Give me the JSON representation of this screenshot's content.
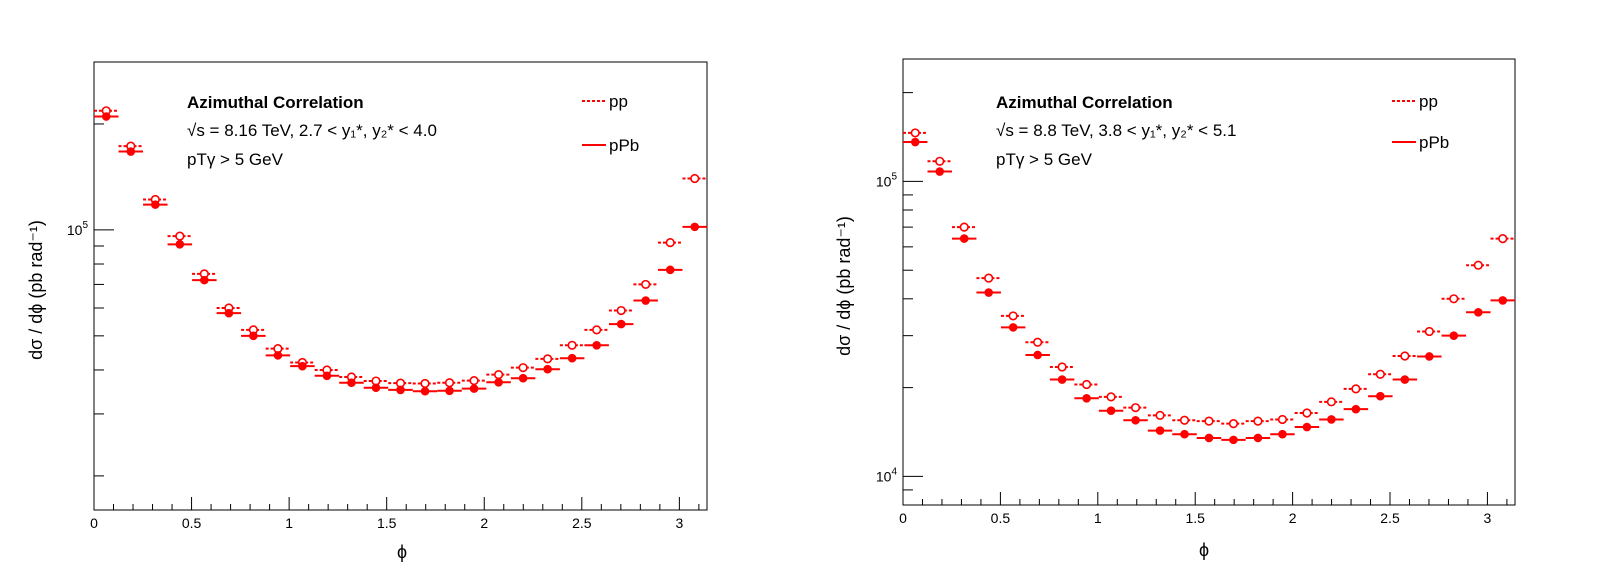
{
  "chart_data": [
    {
      "type": "scatter",
      "title": "",
      "xlabel": "ϕ",
      "ylabel": "dσ / dϕ (pb rad⁻¹)",
      "xlim": [
        0,
        3.14159
      ],
      "ylim": [
        16000,
        300000
      ],
      "yscale": "log",
      "xticks": [
        0,
        0.5,
        1,
        1.5,
        2,
        2.5,
        3
      ],
      "xtick_labels": [
        "0",
        "0.5",
        "1",
        "1.5",
        "2",
        "2.5",
        "3"
      ],
      "yticks_major": [
        {
          "value": 100000,
          "base": "10",
          "exp": "5"
        }
      ],
      "annotation": {
        "title": "Azimuthal Correlation",
        "sqrt_s": "√s = 8.16 TeV, 2.7 < y₁*, y₂* < 4.0",
        "pt_cut": "pTγ > 5 GeV"
      },
      "legend": [
        {
          "name": "pp",
          "style": "dotted"
        },
        {
          "name": "pPb",
          "style": "solid"
        }
      ],
      "legend_position": "top-right",
      "bin_width": 0.12566,
      "x": [
        0.0628,
        0.1885,
        0.3142,
        0.4398,
        0.5655,
        0.6912,
        0.8168,
        0.9425,
        1.0681,
        1.1938,
        1.3195,
        1.4451,
        1.5708,
        1.6965,
        1.8221,
        1.9478,
        2.0735,
        2.1991,
        2.3248,
        2.4504,
        2.5761,
        2.7018,
        2.8274,
        2.9531,
        3.0788
      ],
      "series": [
        {
          "name": "pp",
          "marker": "open-circle",
          "values": [
            218000,
            173000,
            122000,
            96000,
            75000,
            60000,
            52000,
            46000,
            42000,
            40000,
            38200,
            37200,
            36700,
            36600,
            36800,
            37300,
            38800,
            40600,
            43000,
            47000,
            52000,
            59000,
            70000,
            92000,
            140000
          ]
        },
        {
          "name": "pPb",
          "marker": "filled-circle",
          "values": [
            210000,
            167000,
            118000,
            91000,
            72000,
            58000,
            50000,
            44000,
            41000,
            38500,
            36800,
            35600,
            35100,
            34800,
            34900,
            35400,
            36900,
            37900,
            40200,
            43200,
            47000,
            54000,
            63000,
            77000,
            102000
          ]
        }
      ],
      "color": "#ff0000"
    },
    {
      "type": "scatter",
      "title": "",
      "xlabel": "ϕ",
      "ylabel": "dσ / dϕ (pb rad⁻¹)",
      "xlim": [
        0,
        3.14159
      ],
      "ylim": [
        8000,
        260000
      ],
      "yscale": "log",
      "xticks": [
        0,
        0.5,
        1,
        1.5,
        2,
        2.5,
        3
      ],
      "xtick_labels": [
        "0",
        "0.5",
        "1",
        "1.5",
        "2",
        "2.5",
        "3"
      ],
      "yticks_major": [
        {
          "value": 10000,
          "base": "10",
          "exp": "4"
        },
        {
          "value": 100000,
          "base": "10",
          "exp": "5"
        }
      ],
      "annotation": {
        "title": "Azimuthal Correlation",
        "sqrt_s": "√s = 8.8 TeV, 3.8 < y₁*, y₂* < 5.1",
        "pt_cut": "pTγ > 5 GeV"
      },
      "legend": [
        {
          "name": "pp",
          "style": "dotted"
        },
        {
          "name": "pPb",
          "style": "solid"
        }
      ],
      "legend_position": "top-right",
      "bin_width": 0.12566,
      "x": [
        0.0628,
        0.1885,
        0.3142,
        0.4398,
        0.5655,
        0.6912,
        0.8168,
        0.9425,
        1.0681,
        1.1938,
        1.3195,
        1.4451,
        1.5708,
        1.6965,
        1.8221,
        1.9478,
        2.0735,
        2.1991,
        2.3248,
        2.4504,
        2.5761,
        2.7018,
        2.8274,
        2.9531,
        3.0788
      ],
      "series": [
        {
          "name": "pp",
          "marker": "open-circle",
          "values": [
            146000,
            117000,
            70000,
            47000,
            35000,
            28500,
            23500,
            20500,
            18600,
            17100,
            16100,
            15500,
            15400,
            15100,
            15400,
            15600,
            16400,
            17900,
            19800,
            22200,
            25600,
            31000,
            40000,
            52000,
            64000
          ]
        },
        {
          "name": "pPb",
          "marker": "filled-circle",
          "values": [
            136000,
            108000,
            64000,
            42000,
            32000,
            25800,
            21300,
            18400,
            16700,
            15500,
            14300,
            13900,
            13500,
            13300,
            13500,
            13900,
            14700,
            15600,
            16900,
            18700,
            21300,
            25500,
            30000,
            36000,
            39500
          ]
        }
      ],
      "color": "#ff0000"
    }
  ]
}
